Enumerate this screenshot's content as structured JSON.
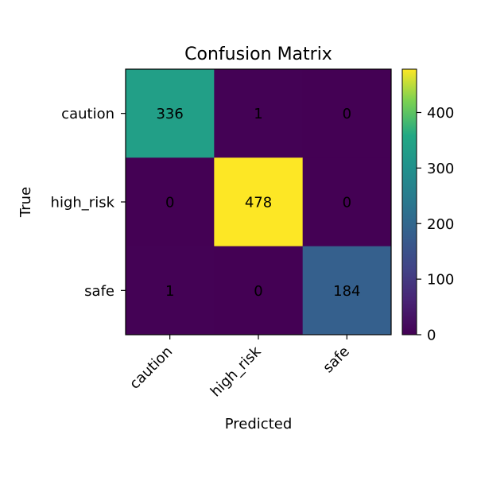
{
  "chart_data": {
    "type": "heatmap",
    "title": "Confusion Matrix",
    "xlabel": "Predicted",
    "ylabel": "True",
    "x_categories": [
      "caution",
      "high_risk",
      "safe"
    ],
    "y_categories": [
      "caution",
      "high_risk",
      "safe"
    ],
    "values": [
      [
        336,
        1,
        0
      ],
      [
        0,
        478,
        0
      ],
      [
        1,
        0,
        184
      ]
    ],
    "colormap": "viridis",
    "vmin": 0,
    "vmax": 478,
    "colorbar_ticks": [
      0,
      100,
      200,
      300,
      400
    ],
    "x_tick_rotation_deg": 45,
    "grid": false
  }
}
